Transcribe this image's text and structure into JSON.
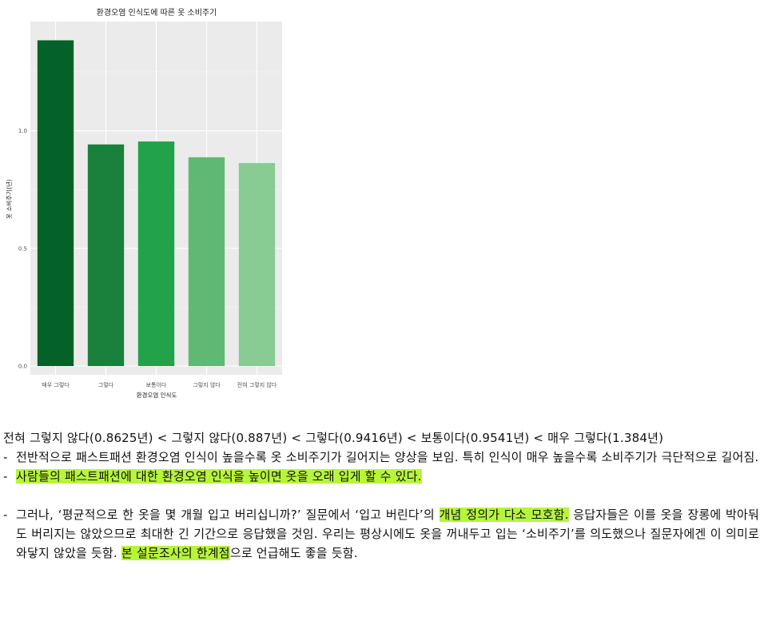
{
  "chart_data": {
    "type": "bar",
    "title": "환경오염 인식도에 따른 옷 소비주기",
    "xlabel": "환경오염 인식도",
    "ylabel": "옷 소비주기(년)",
    "categories": [
      "매우 그렇다",
      "그렇다",
      "보통이다",
      "그렇지 않다",
      "전혀 그렇지 않다"
    ],
    "values": [
      1.384,
      0.9416,
      0.9541,
      0.887,
      0.8625
    ],
    "yticks": [
      "0.0",
      "0.5",
      "1.0"
    ],
    "ylim": [
      0,
      1.45
    ],
    "grid": true,
    "bar_colors": [
      "#046228",
      "#19813b",
      "#22a34a",
      "#5fb873",
      "#88cc94"
    ],
    "panel_color": "#ebebeb"
  },
  "notes": {
    "summary": "전혀 그렇지 않다(0.8625년) < 그렇지 않다(0.887년) < 그렇다(0.9416년) < 보통이다(0.9541년) < 매우 그렇다(1.384년)",
    "dash": "-",
    "bullet1": "전반적으로 패스트패션 환경오염 인식이 높을수록 옷 소비주기가 길어지는 양상을 보임. 특히 인식이 매우 높을수록 소비주기가 극단적으로 길어짐.",
    "bullet2": "사람들의 패스트패션에 대한 환경오염 인식을 높이면 옷을 오래 입게 할 수 있다.",
    "bullet3_part1": "그러나, ‘평균적으로 한 옷을 몇 개월 입고 버리십니까?’ 질문에서 ‘입고 버린다’의 ",
    "bullet3_hl1": "개념 정의가 다소 모호함.",
    "bullet3_part2": " 응답자들은 이를 옷을 장롱에 박아둬도 버리지는 않았으므로 최대한 긴 기간으로 응답했을 것임. 우리는 평상시에도 옷을 꺼내두고 입는 ‘소비주기’를 의도했으나 질문자에겐 이 의미로 와닿지 않았을 듯함. ",
    "bullet3_hl2": "본 설문조사의 한계점",
    "bullet3_part3": "으로 언급해도 좋을 듯함."
  }
}
